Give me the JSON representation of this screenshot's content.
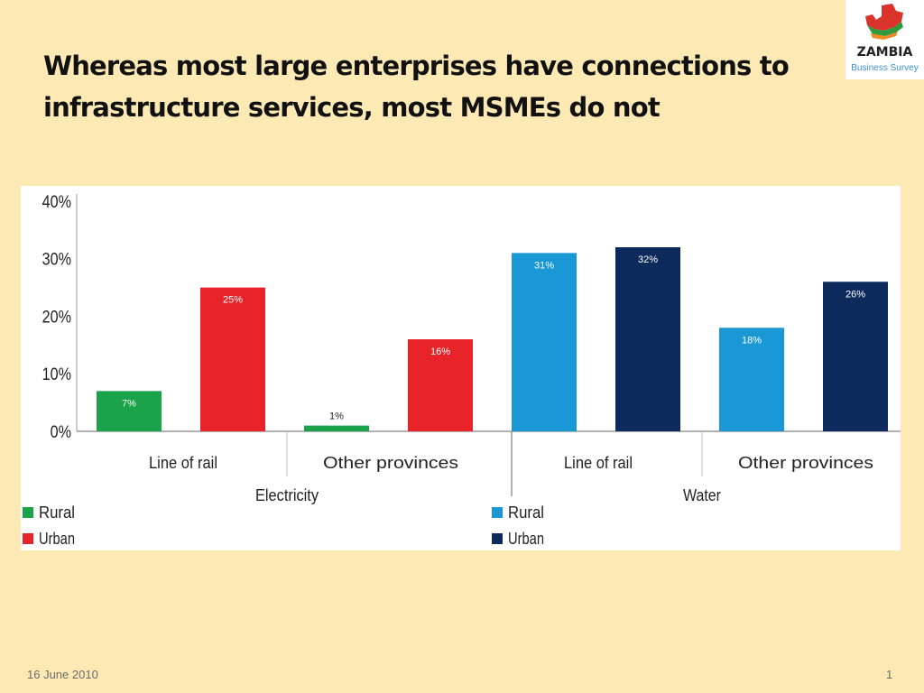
{
  "slide": {
    "title": "Whereas most large enterprises have connections to infrastructure services, most MSMEs do not",
    "footer_date": "16 June 2010",
    "page_number": "1"
  },
  "logo": {
    "word": "ZAMBIA",
    "sub": "Business Survey",
    "icon": "zambia-map-icon"
  },
  "chart_data": {
    "type": "bar",
    "title": "",
    "xlabel": "",
    "ylabel": "",
    "ylim": [
      0,
      40
    ],
    "yticks": [
      "0%",
      "10%",
      "20%",
      "30%",
      "40%"
    ],
    "grid": false,
    "groups": [
      {
        "name": "Electricity",
        "categories": [
          "Line of rail",
          "Other provinces"
        ],
        "series": [
          {
            "name": "Rural",
            "color": "#1aa34a",
            "values": [
              7,
              1
            ],
            "labels": [
              "7%",
              "1%"
            ]
          },
          {
            "name": "Urban",
            "color": "#e8232a",
            "values": [
              25,
              16
            ],
            "labels": [
              "25%",
              "16%"
            ]
          }
        ]
      },
      {
        "name": "Water",
        "categories": [
          "Line of rail",
          "Other provinces"
        ],
        "series": [
          {
            "name": "Rural",
            "color": "#1a97d5",
            "values": [
              31,
              18
            ],
            "labels": [
              "31%",
              "18%"
            ]
          },
          {
            "name": "Urban",
            "color": "#0d2a5c",
            "values": [
              32,
              26
            ],
            "labels": [
              "32%",
              "26%"
            ]
          }
        ]
      }
    ]
  }
}
